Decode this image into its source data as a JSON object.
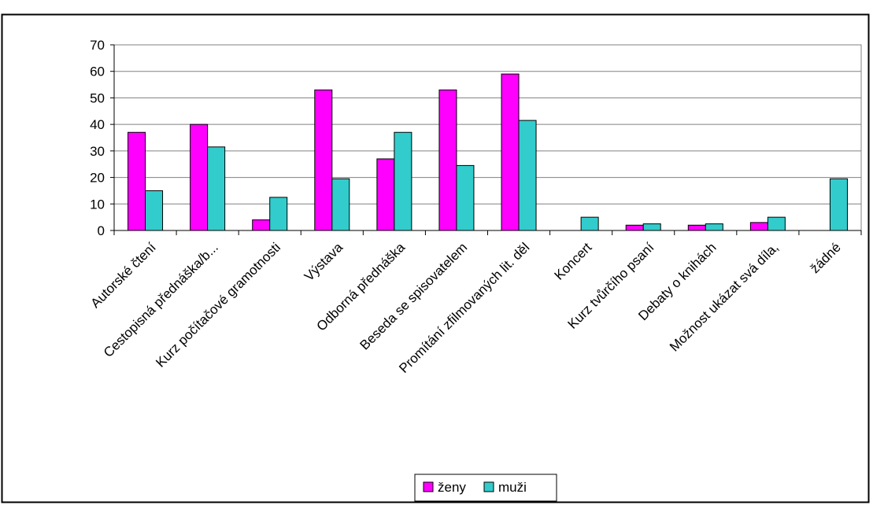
{
  "chart_data": {
    "type": "bar",
    "categories": [
      "Autorské čtení",
      "Cestopisná přednáška/b...",
      "Kurz počítačové gramotnosti",
      "Výstava",
      "Odborná přednáška",
      "Beseda se spisovatelem",
      "Promítání zfilmovaných lit. děl",
      "Koncert",
      "Kurz tvůrčího psaní",
      "Debaty o knihách",
      "Možnost ukázat svá díla,",
      "žádné"
    ],
    "series": [
      {
        "name": "ženy",
        "color": "#ff00ff",
        "values": [
          37,
          40,
          4,
          53,
          27,
          53,
          59,
          0,
          2,
          2,
          3,
          0
        ]
      },
      {
        "name": "muži",
        "color": "#33cccc",
        "values": [
          15,
          31.5,
          12.5,
          19.5,
          37,
          24.5,
          41.5,
          5,
          2.5,
          2.5,
          5,
          19.5
        ]
      }
    ],
    "yticks": [
      0,
      10,
      20,
      30,
      40,
      50,
      60,
      70
    ],
    "ylim": [
      0,
      70
    ],
    "grid": "horizontal",
    "legend_position": "bottom"
  }
}
